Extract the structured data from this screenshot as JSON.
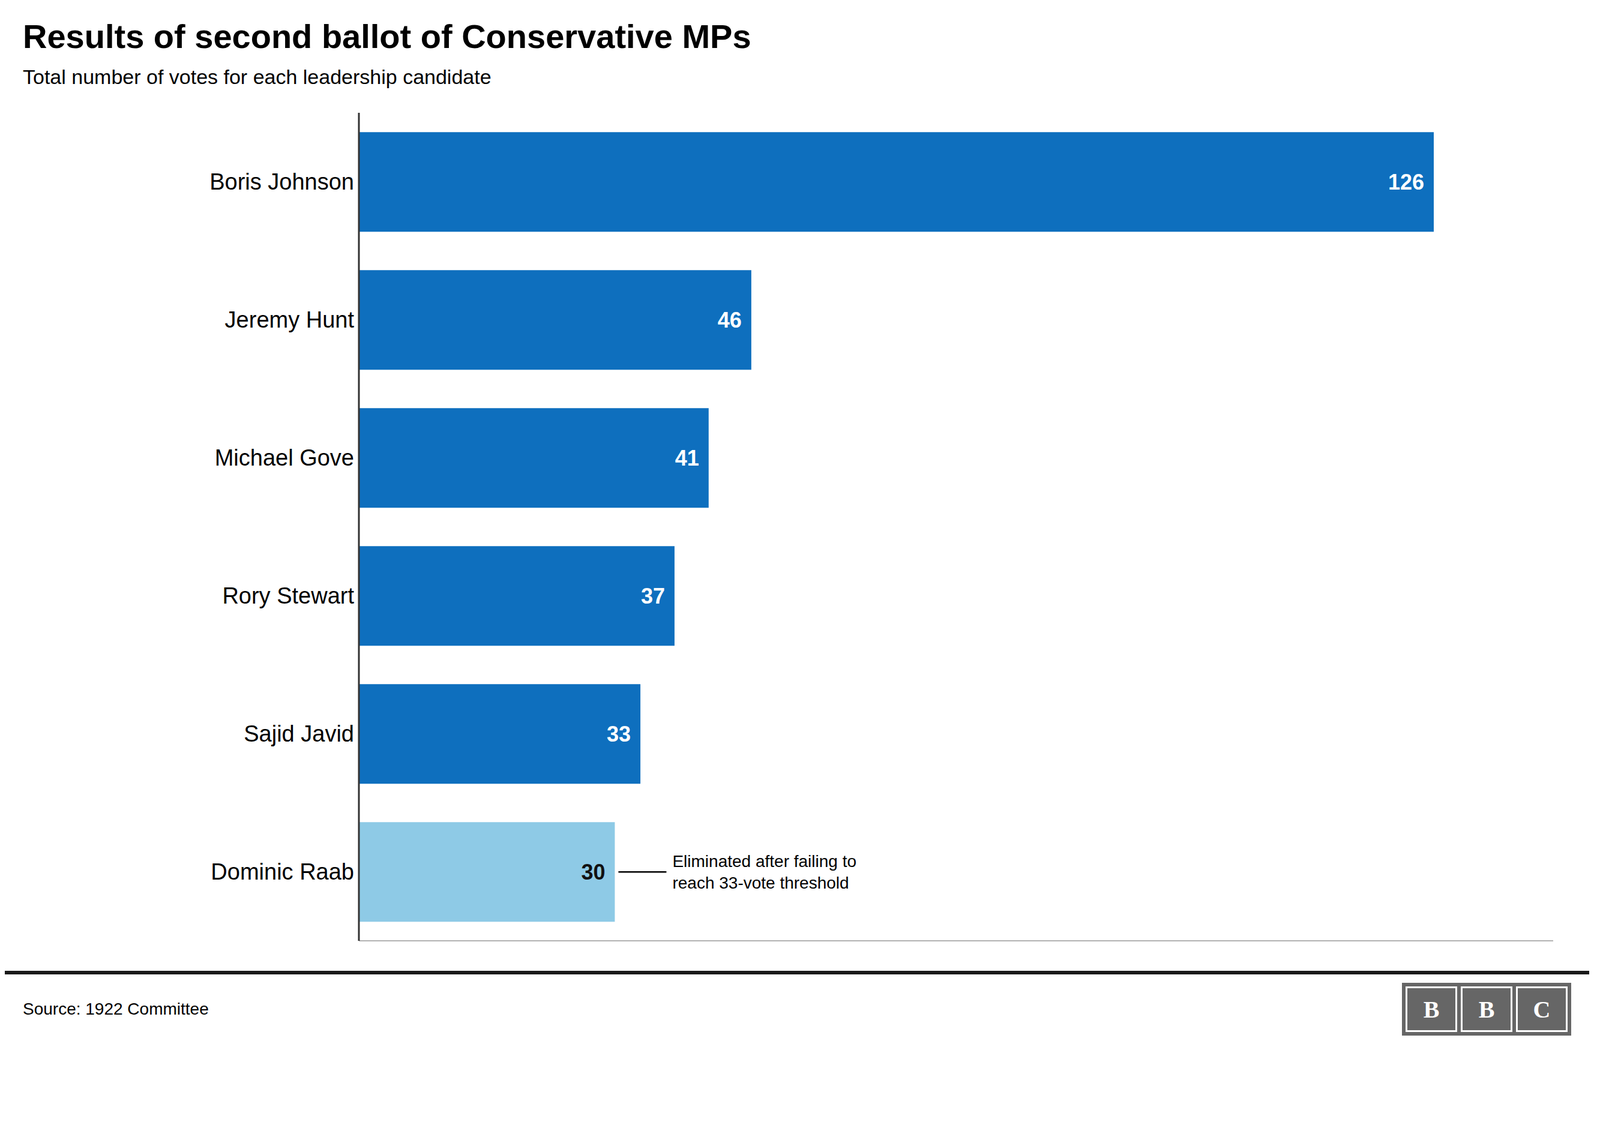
{
  "chart_data": {
    "type": "bar",
    "orientation": "horizontal",
    "title": "Results of second ballot of Conservative MPs",
    "subtitle": "Total number of votes for each leadership candidate",
    "source": "Source: 1922 Committee",
    "logo": "BBC",
    "categories": [
      "Boris Johnson",
      "Jeremy Hunt",
      "Michael Gove",
      "Rory Stewart",
      "Sajid Javid",
      "Dominic Raab"
    ],
    "values": [
      126,
      46,
      41,
      37,
      33,
      30
    ],
    "colors": [
      "#0e6fbe",
      "#0e6fbe",
      "#0e6fbe",
      "#0e6fbe",
      "#0e6fbe",
      "#8ecae6"
    ],
    "xlim": [
      0,
      140
    ],
    "data_labels": true,
    "tick_labels": "y",
    "grid": false,
    "annotations": [
      {
        "text": "Eliminated after failing to\nreach 33-vote threshold",
        "category": "Dominic Raab"
      }
    ]
  }
}
